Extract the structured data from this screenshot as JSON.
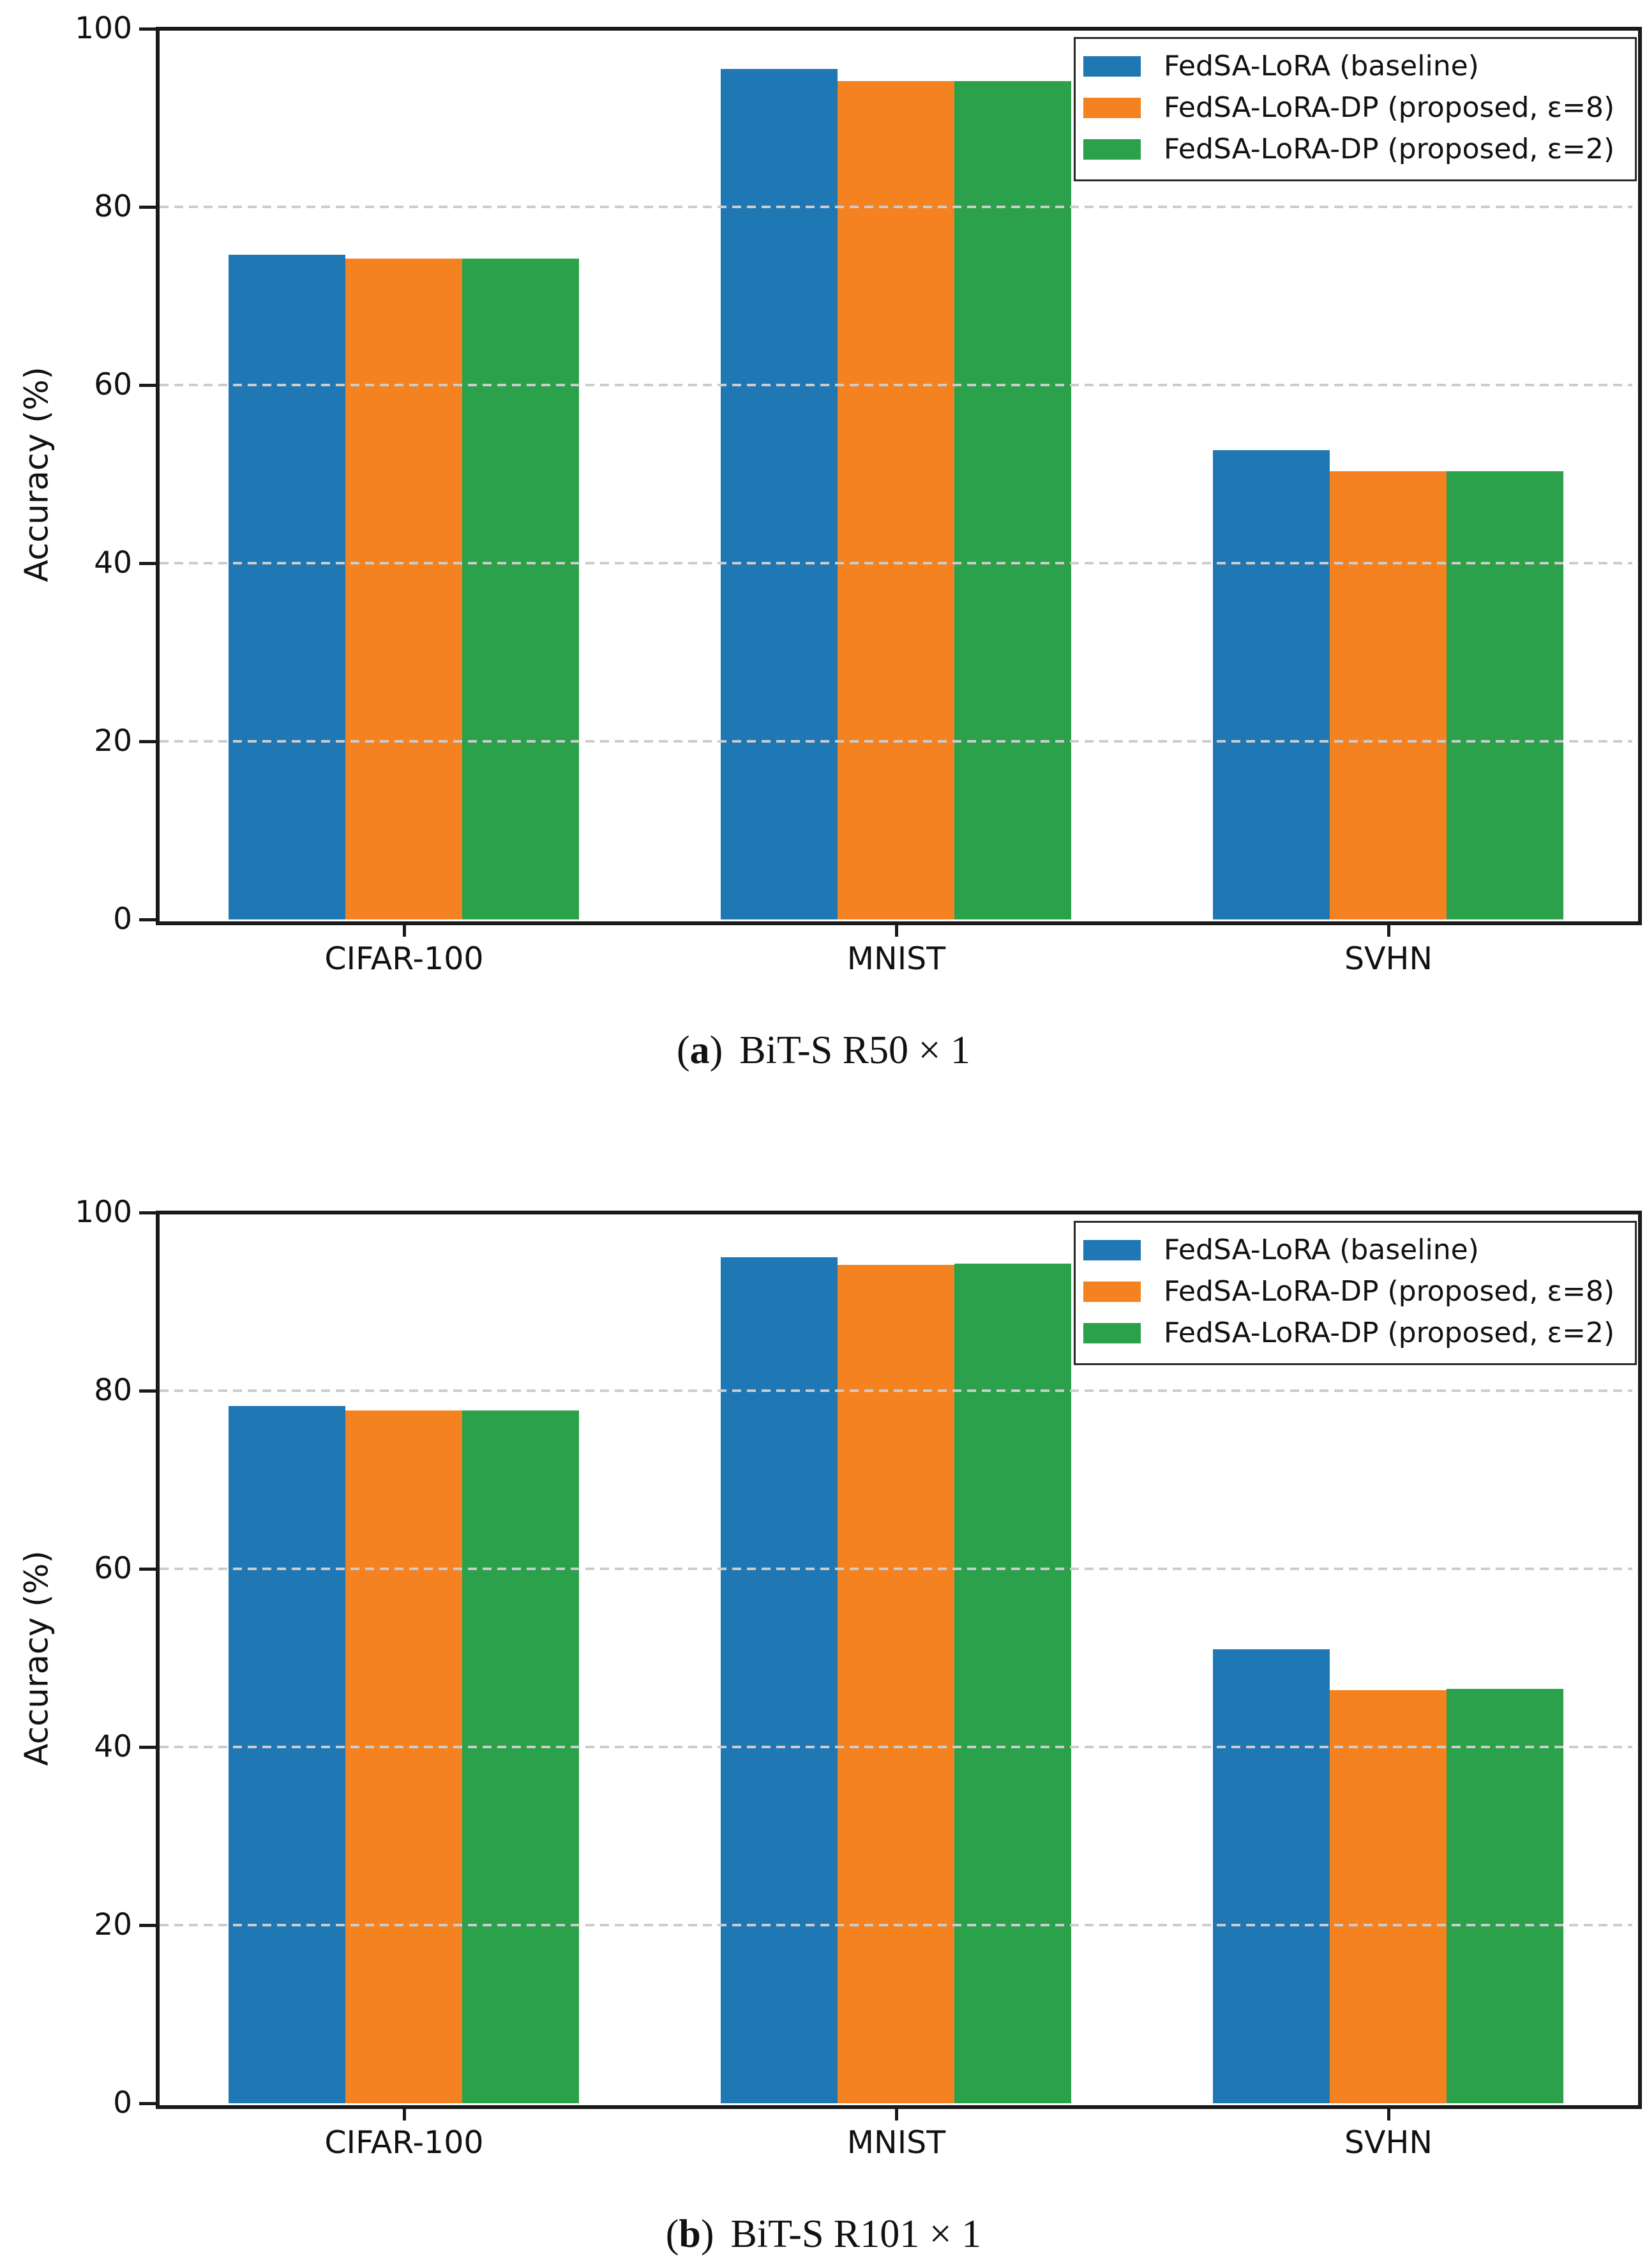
{
  "page": {
    "background": "#ffffff",
    "description": "Two stacked grouped bar charts comparing accuracy of federated LoRA methods"
  },
  "colors": {
    "series_blue": "#1f77b4",
    "series_orange": "#f58220",
    "series_green": "#2aa14a",
    "gridline": "#cccccc",
    "axis": "#1a1a1a"
  },
  "chart_data": [
    {
      "type": "bar",
      "caption": {
        "open": "(",
        "letter": "a",
        "close": ")",
        "text": "BiT-S R50 × 1"
      },
      "ylabel": "Accuracy (%)",
      "ylim": [
        0,
        100
      ],
      "yticks": [
        "0",
        "20",
        "40",
        "60",
        "80",
        "100"
      ],
      "ytick_values": [
        0,
        20,
        40,
        60,
        80,
        100
      ],
      "grid_values": [
        20,
        40,
        60,
        80
      ],
      "grid_style": "dashed horizontal, drawn over bars",
      "legend_position": "upper right",
      "categories": [
        "CIFAR-100",
        "MNIST",
        "SVHN"
      ],
      "series": [
        {
          "name": "FedSA-LoRA (baseline)",
          "color": "#1f77b4",
          "values": [
            74.6,
            95.5,
            52.7
          ]
        },
        {
          "name": "FedSA-LoRA-DP (proposed, ε=8)",
          "color": "#f58220",
          "values": [
            74.2,
            94.1,
            50.3
          ]
        },
        {
          "name": "FedSA-LoRA-DP (proposed, ε=2)",
          "color": "#2aa14a",
          "values": [
            74.2,
            94.1,
            50.3
          ]
        }
      ]
    },
    {
      "type": "bar",
      "caption": {
        "open": "(",
        "letter": "b",
        "close": ")",
        "text": "BiT-S R101 × 1"
      },
      "ylabel": "Accuracy (%)",
      "ylim": [
        0,
        100
      ],
      "yticks": [
        "0",
        "20",
        "40",
        "60",
        "80",
        "100"
      ],
      "ytick_values": [
        0,
        20,
        40,
        60,
        80,
        100
      ],
      "grid_values": [
        20,
        40,
        60,
        80
      ],
      "grid_style": "dashed horizontal, drawn over bars",
      "legend_position": "upper right",
      "categories": [
        "CIFAR-100",
        "MNIST",
        "SVHN"
      ],
      "series": [
        {
          "name": "FedSA-LoRA (baseline)",
          "color": "#1f77b4",
          "values": [
            78.3,
            95.0,
            51.0
          ]
        },
        {
          "name": "FedSA-LoRA-DP (proposed, ε=8)",
          "color": "#f58220",
          "values": [
            77.8,
            94.1,
            46.4
          ]
        },
        {
          "name": "FedSA-LoRA-DP (proposed, ε=2)",
          "color": "#2aa14a",
          "values": [
            77.8,
            94.3,
            46.5
          ]
        }
      ]
    }
  ]
}
